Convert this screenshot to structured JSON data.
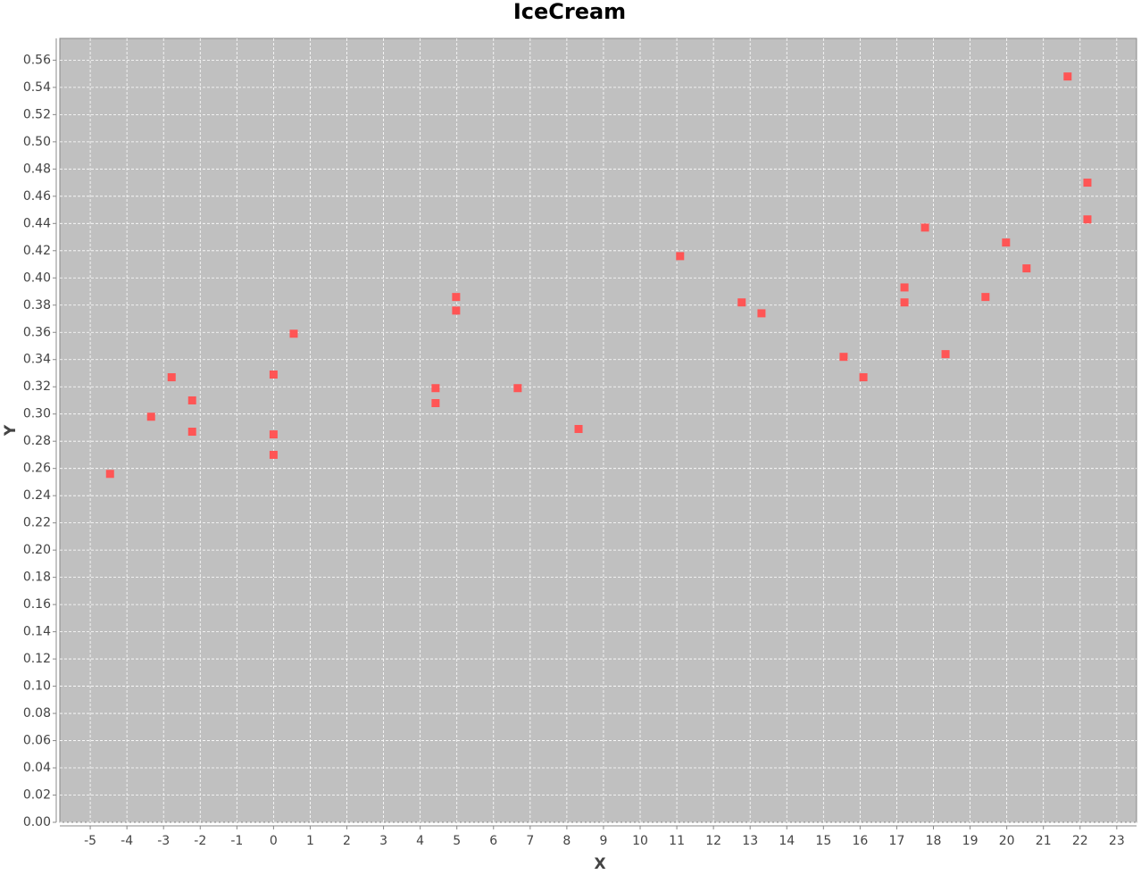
{
  "chart_data": {
    "type": "scatter",
    "title": "IceCream",
    "x_label": "X",
    "y_label": "Y",
    "xlim": [
      -5.83,
      23.54
    ],
    "xticks": [
      -5,
      -4,
      -3,
      -2,
      -1,
      0,
      1,
      2,
      3,
      4,
      5,
      6,
      7,
      8,
      9,
      10,
      11,
      12,
      13,
      14,
      15,
      16,
      17,
      18,
      19,
      20,
      21,
      22,
      23
    ],
    "ylim": [
      0,
      0.576
    ],
    "yticks": [
      {
        "value": 0,
        "label": "0.00"
      },
      0.02,
      0.04,
      0.06,
      0.08,
      {
        "value": 0.1,
        "label": "0.10"
      },
      0.12,
      0.14,
      0.16,
      0.18,
      {
        "value": 0.2,
        "label": "0.20"
      },
      0.22,
      0.24,
      0.26,
      0.28,
      {
        "value": 0.3,
        "label": "0.30"
      },
      0.32,
      0.34,
      0.36,
      0.38,
      {
        "value": 0.4,
        "label": "0.40"
      },
      0.42,
      0.44,
      0.46,
      0.48,
      {
        "value": 0.5,
        "label": "0.50"
      },
      0.52,
      0.54,
      0.56
    ],
    "grid": true,
    "series": [
      {
        "color": "#ff5555",
        "x": [
          -4.46,
          -3.34,
          -2.78,
          -2.22,
          -2.22,
          0.0,
          0.0,
          0.0,
          0.55,
          4.42,
          4.42,
          4.98,
          4.98,
          6.66,
          8.32,
          11.09,
          12.77,
          13.31,
          15.55,
          16.09,
          17.21,
          17.21,
          17.77,
          18.33,
          19.42,
          19.98,
          20.54,
          21.66,
          22.2,
          22.2
        ],
        "values": [
          0.256,
          0.298,
          0.327,
          0.31,
          0.287,
          0.329,
          0.285,
          0.27,
          0.359,
          0.319,
          0.308,
          0.386,
          0.376,
          0.319,
          0.289,
          0.416,
          0.382,
          0.374,
          0.342,
          0.327,
          0.393,
          0.382,
          0.437,
          0.344,
          0.386,
          0.426,
          0.407,
          0.548,
          0.47,
          0.443
        ]
      }
    ]
  }
}
